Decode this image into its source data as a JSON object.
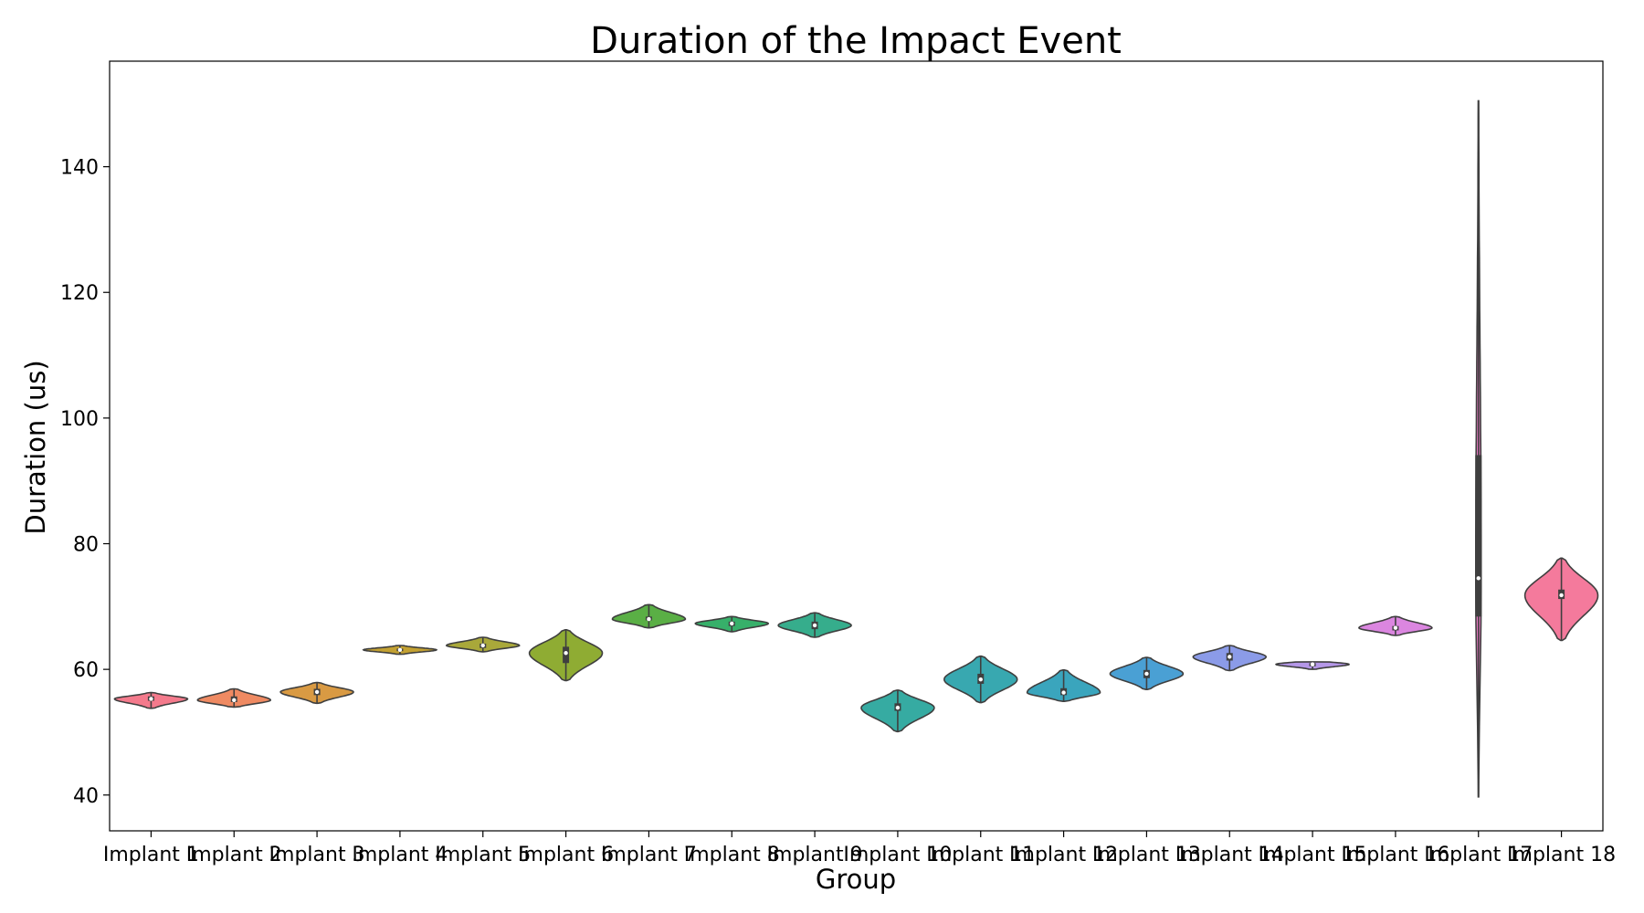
{
  "chart_data": {
    "type": "violin",
    "title": "Duration of the Impact Event",
    "xlabel": "Group",
    "ylabel": "Duration (us)",
    "ylim": [
      34.3,
      156.8
    ],
    "yticks": [
      40,
      60,
      80,
      100,
      120,
      140
    ],
    "grid": false,
    "legend": "none",
    "categories": [
      "Implant 1",
      "Implant 2",
      "Implant 3",
      "Implant 4",
      "Implant 5",
      "Implant 6",
      "Implant 7",
      "Implant 8",
      "Implant 9",
      "Implant 10",
      "Implant 11",
      "Implant 12",
      "Implant 13",
      "Implant 14",
      "Implant 15",
      "Implant 16",
      "Implant 17",
      "Implant 18"
    ],
    "series": [
      {
        "min": 53.8,
        "q1": 55.0,
        "median": 55.3,
        "q3": 55.7,
        "max": 56.3,
        "color": "#f47a8c"
      },
      {
        "min": 54.0,
        "q1": 54.8,
        "median": 55.1,
        "q3": 55.7,
        "max": 56.9,
        "color": "#ef8a62"
      },
      {
        "min": 54.6,
        "q1": 55.9,
        "median": 56.4,
        "q3": 56.9,
        "max": 57.9,
        "color": "#d99a43"
      },
      {
        "min": 62.4,
        "q1": 62.9,
        "median": 63.1,
        "q3": 63.3,
        "max": 63.8,
        "color": "#c3a132"
      },
      {
        "min": 62.8,
        "q1": 63.4,
        "median": 63.8,
        "q3": 64.1,
        "max": 65.1,
        "color": "#a9a83a"
      },
      {
        "min": 58.2,
        "q1": 61.0,
        "median": 62.6,
        "q3": 63.6,
        "max": 66.3,
        "color": "#8fac33"
      },
      {
        "min": 66.6,
        "q1": 67.8,
        "median": 68.0,
        "q3": 68.4,
        "max": 70.3,
        "color": "#5aaf45"
      },
      {
        "min": 66.0,
        "q1": 66.9,
        "median": 67.3,
        "q3": 67.6,
        "max": 68.4,
        "color": "#37b06a"
      },
      {
        "min": 65.1,
        "q1": 66.4,
        "median": 67.0,
        "q3": 67.6,
        "max": 69.0,
        "color": "#36ad8c"
      },
      {
        "min": 50.1,
        "q1": 53.4,
        "median": 53.9,
        "q3": 54.6,
        "max": 56.7,
        "color": "#36aba2"
      },
      {
        "min": 54.7,
        "q1": 57.7,
        "median": 58.4,
        "q3": 59.3,
        "max": 62.1,
        "color": "#38a8b0"
      },
      {
        "min": 54.9,
        "q1": 55.9,
        "median": 56.3,
        "q3": 57.0,
        "max": 59.9,
        "color": "#3aa5bd"
      },
      {
        "min": 56.8,
        "q1": 58.6,
        "median": 59.3,
        "q3": 59.9,
        "max": 61.9,
        "color": "#4aa0d4"
      },
      {
        "min": 59.8,
        "q1": 61.4,
        "median": 62.0,
        "q3": 62.6,
        "max": 63.8,
        "color": "#8b9be8"
      },
      {
        "min": 60.0,
        "q1": 60.5,
        "median": 60.8,
        "q3": 61.0,
        "max": 61.2,
        "color": "#b597e8"
      },
      {
        "min": 65.4,
        "q1": 66.2,
        "median": 66.6,
        "q3": 66.9,
        "max": 68.4,
        "color": "#db86e0"
      },
      {
        "min": 39.7,
        "q1": 68.4,
        "median": 74.5,
        "q3": 94.1,
        "max": 150.5,
        "color": "#f07ac8"
      },
      {
        "min": 64.6,
        "q1": 71.2,
        "median": 71.8,
        "q3": 72.7,
        "max": 77.7,
        "color": "#f47a9c"
      }
    ]
  }
}
